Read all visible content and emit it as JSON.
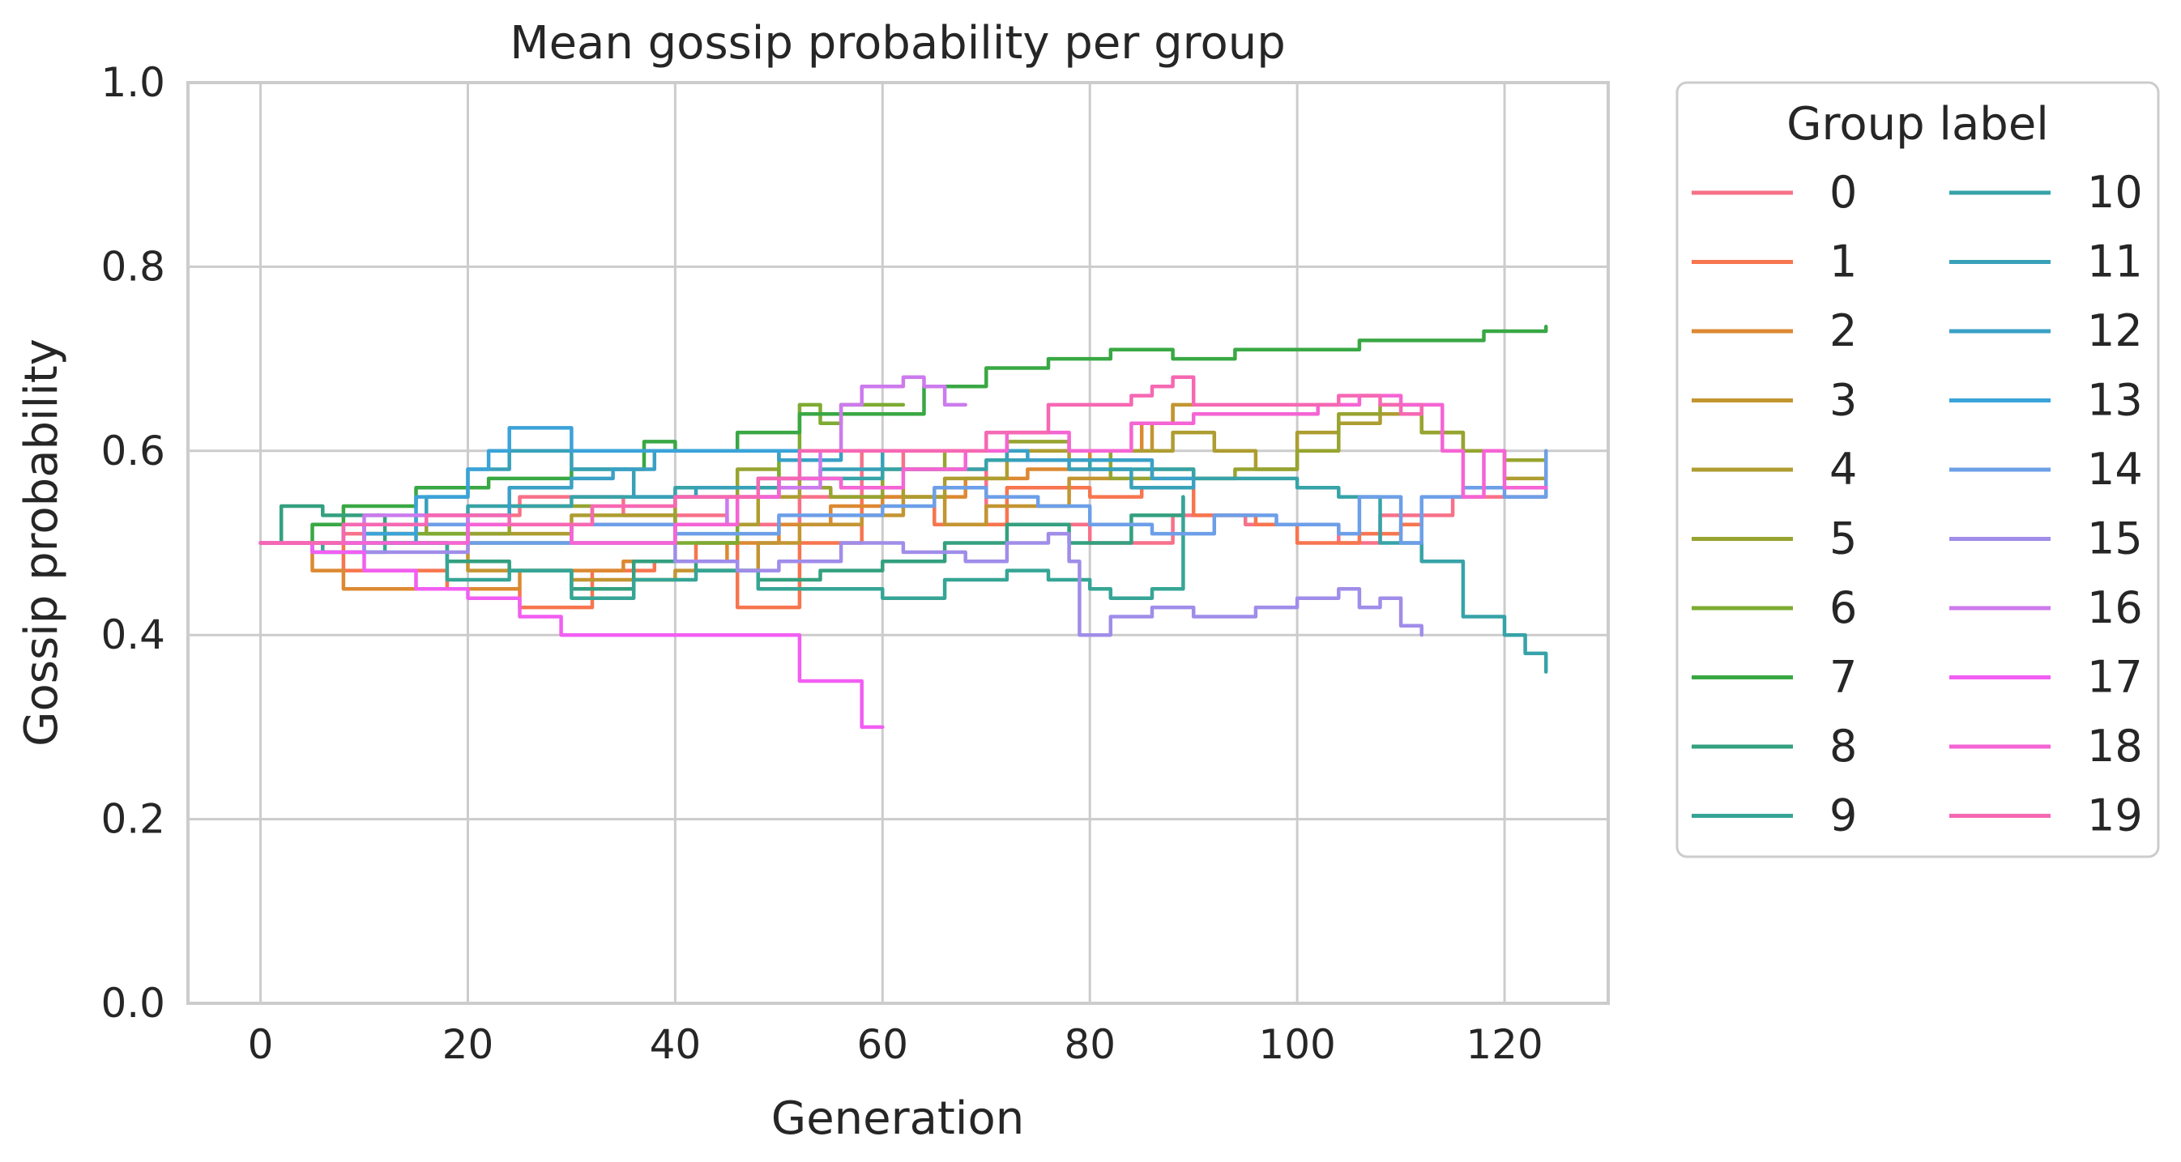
{
  "chart_data": {
    "type": "line",
    "title": "Mean gossip probability per group",
    "xlabel": "Generation",
    "ylabel": "Gossip probability",
    "xlim": [
      -7,
      130
    ],
    "ylim": [
      0,
      1
    ],
    "xticks": [
      0,
      20,
      40,
      60,
      80,
      100,
      120
    ],
    "yticks": [
      0.0,
      0.2,
      0.4,
      0.6,
      0.8,
      1.0
    ],
    "xtick_labels": [
      "0",
      "20",
      "40",
      "60",
      "80",
      "100",
      "120"
    ],
    "ytick_labels": [
      "0.0",
      "0.2",
      "0.4",
      "0.6",
      "0.8",
      "1.0"
    ],
    "grid": true,
    "legend": {
      "title": "Group label",
      "placement": "outside-right",
      "columns": 2
    },
    "series": [
      {
        "name": "0",
        "color": "#f77189",
        "x": [
          0,
          8,
          15,
          25,
          35,
          45,
          52,
          58,
          62,
          70,
          80,
          88,
          95,
          104,
          108,
          115,
          120,
          124
        ],
        "y": [
          0.5,
          0.51,
          0.53,
          0.55,
          0.53,
          0.52,
          0.55,
          0.6,
          0.58,
          0.52,
          0.5,
          0.53,
          0.52,
          0.5,
          0.53,
          0.55,
          0.55,
          0.56
        ]
      },
      {
        "name": "1",
        "color": "#f7754f",
        "x": [
          0,
          8,
          18,
          25,
          32,
          38,
          42,
          46,
          52,
          58,
          65,
          72,
          80,
          85,
          90,
          96,
          100,
          106,
          110,
          112
        ],
        "y": [
          0.5,
          0.47,
          0.45,
          0.43,
          0.47,
          0.48,
          0.5,
          0.43,
          0.5,
          0.55,
          0.52,
          0.56,
          0.55,
          0.56,
          0.53,
          0.52,
          0.5,
          0.51,
          0.52,
          0.53
        ]
      },
      {
        "name": "2",
        "color": "#dc8932",
        "x": [
          0,
          5,
          8,
          15,
          25,
          35,
          45,
          50,
          55,
          60,
          68,
          74,
          80,
          85,
          88
        ],
        "y": [
          0.5,
          0.47,
          0.45,
          0.45,
          0.47,
          0.48,
          0.5,
          0.52,
          0.54,
          0.55,
          0.57,
          0.58,
          0.6,
          0.63,
          0.65
        ]
      },
      {
        "name": "3",
        "color": "#c39532",
        "x": [
          0,
          10,
          20,
          30,
          40,
          48,
          52,
          58,
          62,
          66,
          70,
          78,
          82,
          86,
          88,
          90
        ],
        "y": [
          0.5,
          0.5,
          0.47,
          0.46,
          0.47,
          0.5,
          0.52,
          0.53,
          0.55,
          0.52,
          0.54,
          0.57,
          0.6,
          0.63,
          0.65,
          0.65
        ]
      },
      {
        "name": "4",
        "color": "#ae9d31",
        "x": [
          0,
          10,
          20,
          30,
          40,
          48,
          52,
          56,
          62,
          66,
          72,
          78,
          82,
          88,
          92,
          96,
          100,
          104,
          108,
          112,
          116,
          120,
          124
        ],
        "y": [
          0.5,
          0.52,
          0.51,
          0.53,
          0.52,
          0.55,
          0.57,
          0.56,
          0.55,
          0.57,
          0.6,
          0.59,
          0.6,
          0.62,
          0.6,
          0.58,
          0.62,
          0.63,
          0.64,
          0.62,
          0.6,
          0.57,
          0.58
        ]
      },
      {
        "name": "5",
        "color": "#97a431",
        "x": [
          0,
          8,
          16,
          24,
          32,
          40,
          46,
          50,
          55,
          60,
          66,
          72,
          78,
          82,
          86,
          90,
          94,
          100,
          104,
          108,
          112,
          116,
          120,
          124
        ],
        "y": [
          0.5,
          0.52,
          0.51,
          0.54,
          0.52,
          0.55,
          0.58,
          0.56,
          0.55,
          0.58,
          0.6,
          0.61,
          0.6,
          0.57,
          0.58,
          0.57,
          0.58,
          0.6,
          0.64,
          0.65,
          0.62,
          0.6,
          0.59,
          0.6
        ]
      },
      {
        "name": "6",
        "color": "#7eab32",
        "x": [
          0,
          10,
          20,
          30,
          40,
          46,
          50,
          52,
          54,
          56,
          60,
          62
        ],
        "y": [
          0.5,
          0.51,
          0.5,
          0.52,
          0.5,
          0.55,
          0.6,
          0.65,
          0.63,
          0.65,
          0.65,
          0.65
        ]
      },
      {
        "name": "7",
        "color": "#39a844",
        "x": [
          0,
          5,
          8,
          15,
          22,
          30,
          37,
          40,
          46,
          52,
          58,
          64,
          70,
          76,
          82,
          88,
          94,
          100,
          106,
          112,
          118,
          124
        ],
        "y": [
          0.5,
          0.52,
          0.54,
          0.56,
          0.57,
          0.58,
          0.61,
          0.6,
          0.62,
          0.64,
          0.64,
          0.67,
          0.69,
          0.7,
          0.71,
          0.7,
          0.71,
          0.71,
          0.72,
          0.72,
          0.73,
          0.735
        ]
      },
      {
        "name": "8",
        "color": "#34a07f",
        "x": [
          0,
          2,
          6,
          12,
          18,
          24,
          30,
          36,
          42,
          48,
          54,
          60,
          66,
          72,
          78,
          84,
          89
        ],
        "y": [
          0.5,
          0.54,
          0.53,
          0.5,
          0.48,
          0.47,
          0.45,
          0.48,
          0.47,
          0.46,
          0.47,
          0.48,
          0.5,
          0.52,
          0.5,
          0.53,
          0.55
        ]
      },
      {
        "name": "9",
        "color": "#36a596",
        "x": [
          0,
          6,
          12,
          18,
          24,
          30,
          36,
          42,
          48,
          54,
          60,
          66,
          72,
          76,
          80,
          82,
          86,
          89
        ],
        "y": [
          0.5,
          0.49,
          0.5,
          0.46,
          0.47,
          0.44,
          0.46,
          0.47,
          0.45,
          0.45,
          0.44,
          0.46,
          0.47,
          0.46,
          0.45,
          0.44,
          0.45,
          0.55
        ]
      },
      {
        "name": "10",
        "color": "#37a3a8",
        "x": [
          0,
          10,
          20,
          30,
          40,
          50,
          60,
          70,
          80,
          90,
          96,
          100,
          104,
          108,
          112,
          116,
          120,
          122,
          124
        ],
        "y": [
          0.5,
          0.52,
          0.54,
          0.55,
          0.56,
          0.57,
          0.58,
          0.59,
          0.58,
          0.57,
          0.57,
          0.56,
          0.55,
          0.5,
          0.48,
          0.42,
          0.4,
          0.38,
          0.36
        ]
      },
      {
        "name": "11",
        "color": "#38a1b9",
        "x": [
          0,
          8,
          16,
          20,
          24,
          30,
          36,
          42,
          48,
          54,
          60,
          66,
          72,
          78,
          84,
          90
        ],
        "y": [
          0.5,
          0.52,
          0.55,
          0.58,
          0.6,
          0.58,
          0.55,
          0.56,
          0.57,
          0.58,
          0.6,
          0.6,
          0.59,
          0.58,
          0.56,
          0.56
        ]
      },
      {
        "name": "12",
        "color": "#3aa0c6",
        "x": [
          0,
          5,
          10,
          15,
          20,
          24,
          30,
          34,
          38,
          44,
          50,
          56,
          62,
          68,
          74,
          80,
          86,
          90
        ],
        "y": [
          0.5,
          0.49,
          0.5,
          0.52,
          0.53,
          0.56,
          0.57,
          0.58,
          0.6,
          0.6,
          0.59,
          0.6,
          0.6,
          0.6,
          0.59,
          0.59,
          0.57,
          0.56
        ]
      },
      {
        "name": "13",
        "color": "#3ba3d8",
        "x": [
          0,
          5,
          10,
          15,
          20,
          22,
          24,
          28,
          30,
          40,
          50,
          60
        ],
        "y": [
          0.5,
          0.5,
          0.51,
          0.55,
          0.58,
          0.6,
          0.625,
          0.625,
          0.6,
          0.6,
          0.6,
          0.6
        ]
      },
      {
        "name": "14",
        "color": "#6d9fe8",
        "x": [
          0,
          10,
          20,
          30,
          40,
          50,
          60,
          65,
          70,
          75,
          80,
          86,
          92,
          98,
          104,
          106,
          110,
          112,
          116,
          120,
          124
        ],
        "y": [
          0.5,
          0.52,
          0.5,
          0.52,
          0.51,
          0.53,
          0.54,
          0.56,
          0.55,
          0.54,
          0.52,
          0.51,
          0.53,
          0.52,
          0.51,
          0.55,
          0.5,
          0.55,
          0.56,
          0.55,
          0.6
        ]
      },
      {
        "name": "15",
        "color": "#a08de9",
        "x": [
          0,
          10,
          20,
          30,
          40,
          46,
          50,
          56,
          62,
          68,
          72,
          76,
          78,
          79,
          82,
          86,
          90,
          96,
          100,
          104,
          106,
          108,
          110,
          112
        ],
        "y": [
          0.5,
          0.49,
          0.52,
          0.5,
          0.48,
          0.47,
          0.48,
          0.5,
          0.49,
          0.48,
          0.5,
          0.51,
          0.48,
          0.4,
          0.42,
          0.43,
          0.42,
          0.43,
          0.44,
          0.45,
          0.43,
          0.44,
          0.41,
          0.4
        ]
      },
      {
        "name": "16",
        "color": "#cc7aed",
        "x": [
          0,
          10,
          20,
          30,
          40,
          45,
          50,
          54,
          56,
          58,
          62,
          64,
          66,
          68
        ],
        "y": [
          0.5,
          0.53,
          0.52,
          0.5,
          0.52,
          0.55,
          0.56,
          0.6,
          0.65,
          0.67,
          0.68,
          0.67,
          0.65,
          0.65
        ]
      },
      {
        "name": "17",
        "color": "#f25ef2",
        "x": [
          0,
          5,
          10,
          15,
          20,
          25,
          29,
          35,
          40,
          45,
          50,
          52,
          55,
          57,
          58,
          60
        ],
        "y": [
          0.5,
          0.49,
          0.47,
          0.45,
          0.44,
          0.42,
          0.4,
          0.4,
          0.4,
          0.4,
          0.4,
          0.35,
          0.35,
          0.35,
          0.3,
          0.3
        ]
      },
      {
        "name": "18",
        "color": "#f564d4",
        "x": [
          0,
          10,
          20,
          30,
          40,
          46,
          50,
          56,
          62,
          68,
          72,
          78,
          84,
          90,
          96,
          102,
          106,
          110,
          114,
          116,
          118,
          120,
          124
        ],
        "y": [
          0.5,
          0.5,
          0.52,
          0.5,
          0.52,
          0.55,
          0.57,
          0.56,
          0.58,
          0.6,
          0.62,
          0.6,
          0.63,
          0.64,
          0.64,
          0.65,
          0.66,
          0.65,
          0.6,
          0.55,
          0.6,
          0.56,
          0.56
        ]
      },
      {
        "name": "19",
        "color": "#f668b3",
        "x": [
          0,
          8,
          16,
          24,
          32,
          40,
          48,
          52,
          56,
          60,
          66,
          70,
          76,
          80,
          84,
          86,
          88,
          90,
          96,
          100,
          104,
          108,
          110,
          112
        ],
        "y": [
          0.5,
          0.52,
          0.53,
          0.52,
          0.54,
          0.55,
          0.57,
          0.6,
          0.6,
          0.6,
          0.6,
          0.62,
          0.65,
          0.65,
          0.66,
          0.67,
          0.68,
          0.65,
          0.65,
          0.65,
          0.66,
          0.65,
          0.64,
          0.65
        ]
      }
    ]
  }
}
